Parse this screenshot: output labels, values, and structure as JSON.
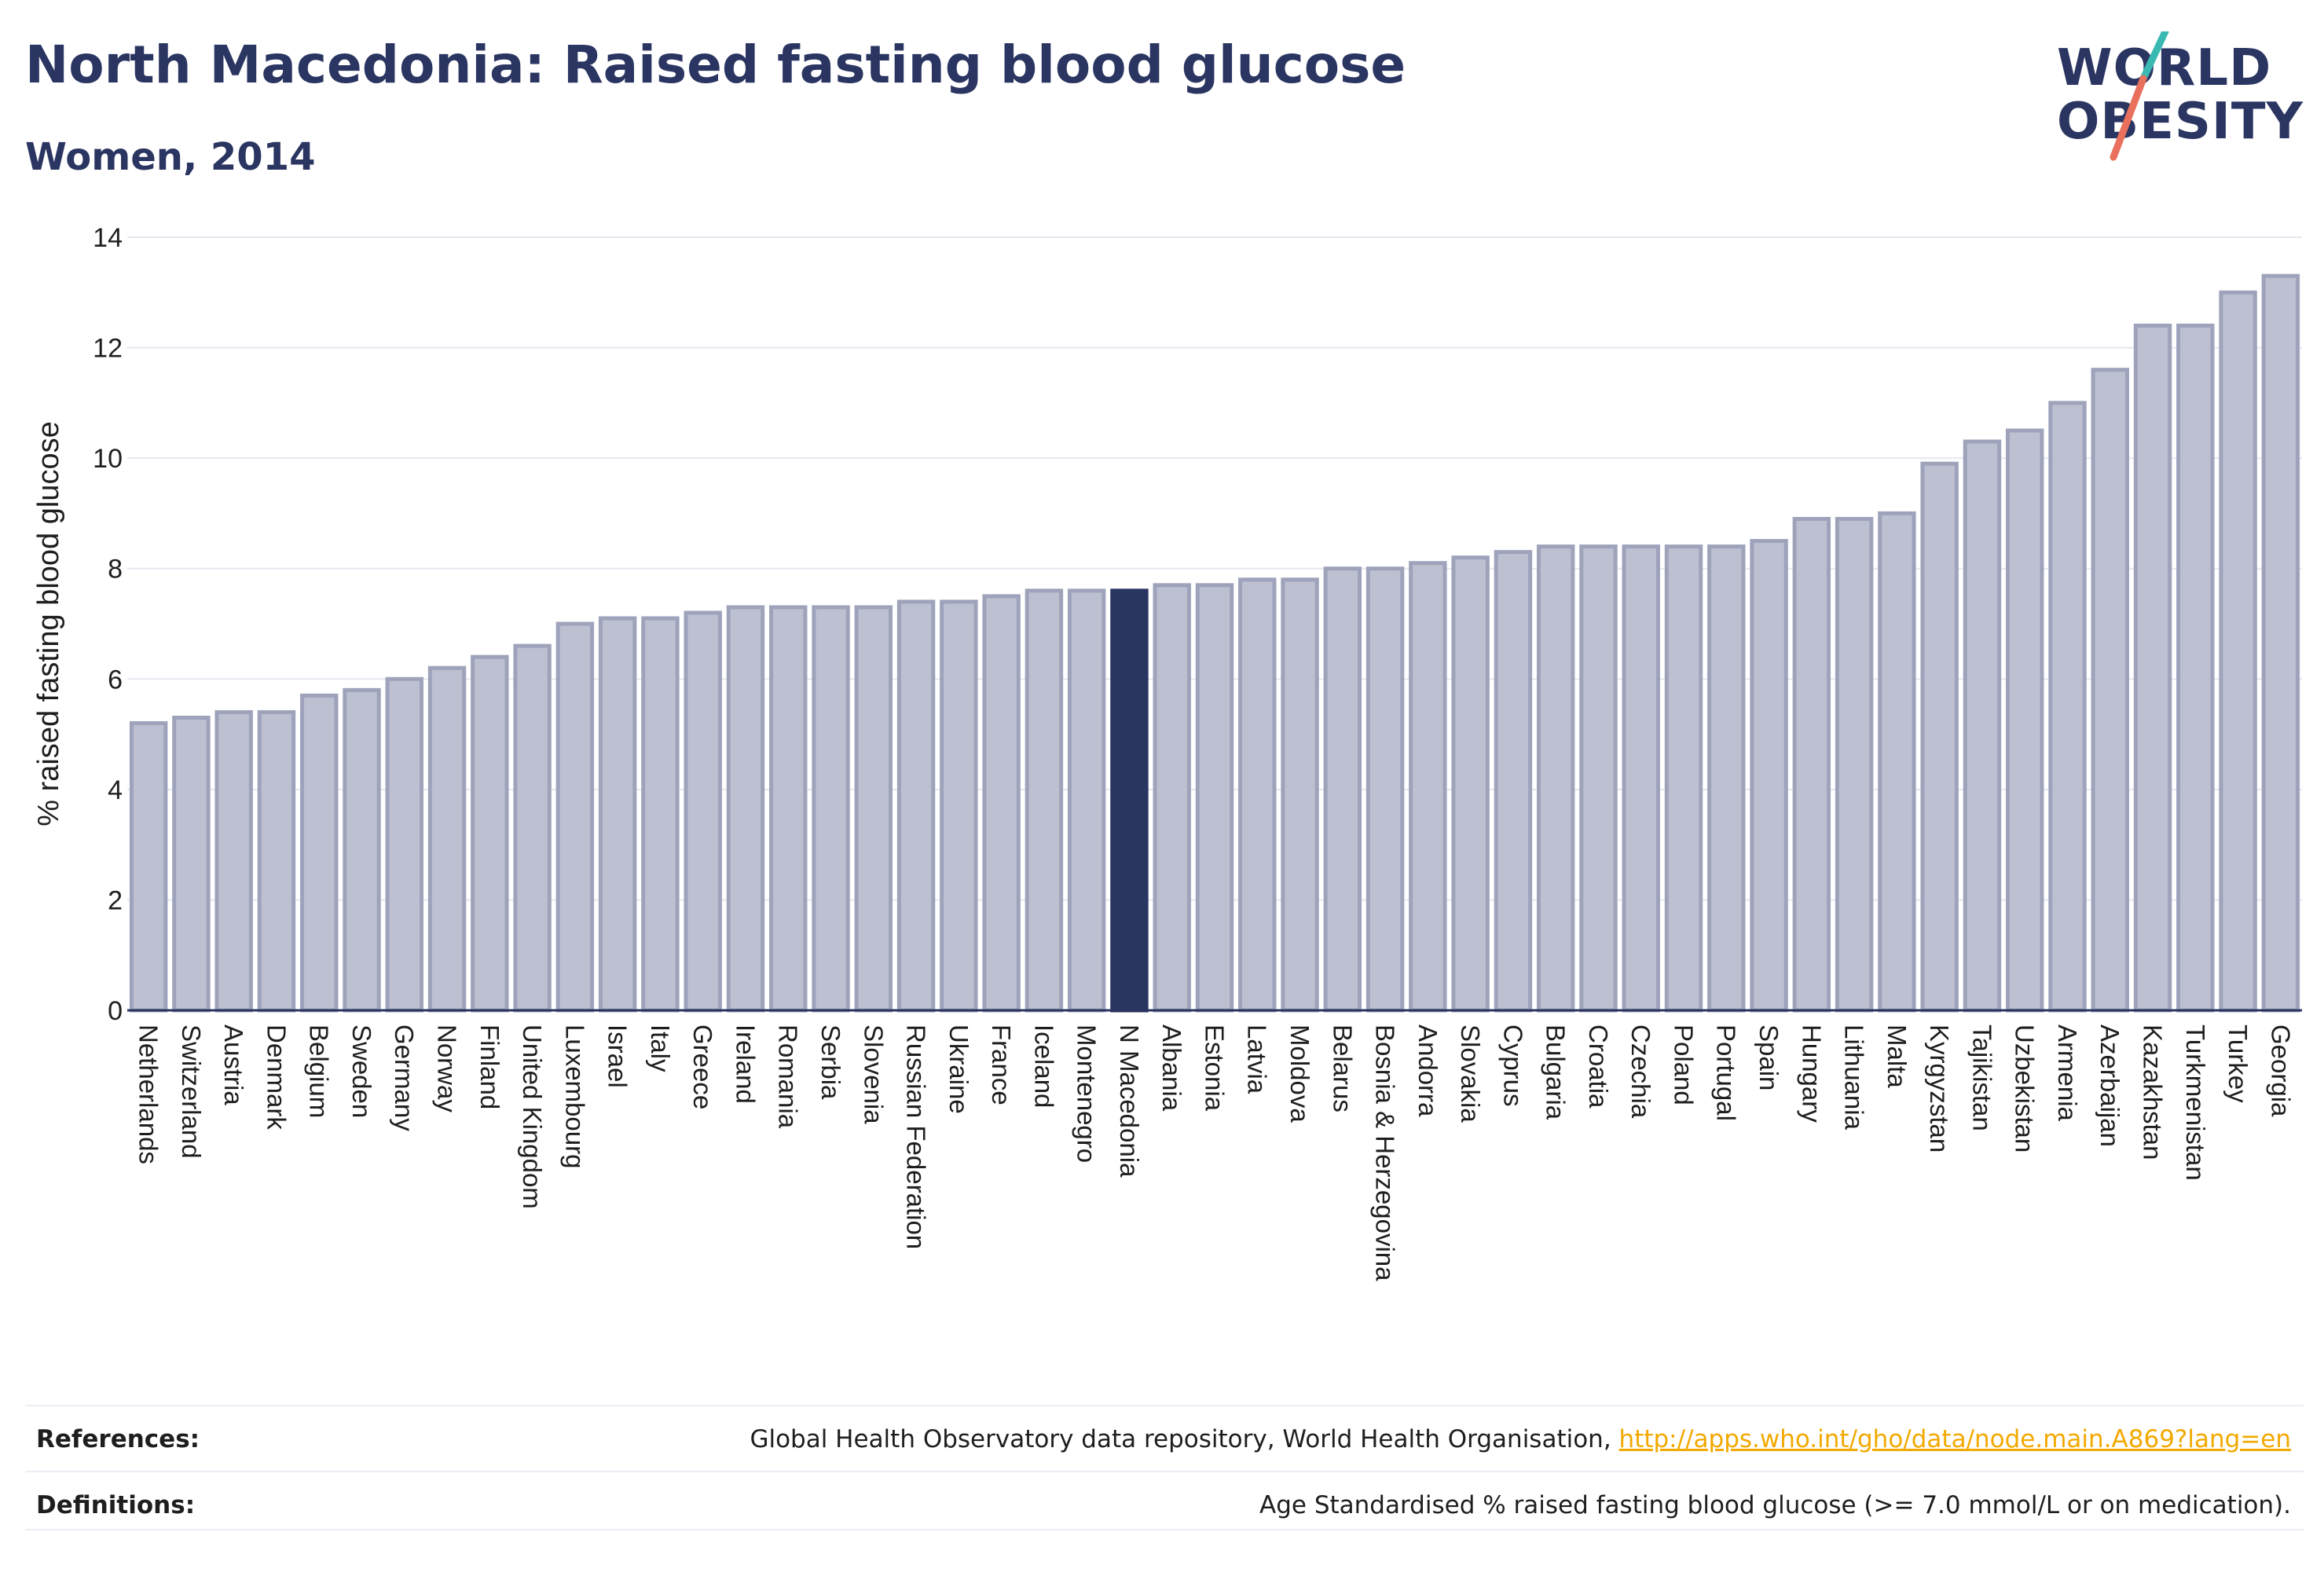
{
  "header": {
    "title": "North Macedonia: Raised fasting blood glucose",
    "subtitle": "Women, 2014"
  },
  "logo": {
    "line1": "WORLD",
    "line2": "OBESITY",
    "colors": {
      "text": "#2a3561",
      "slash_top": "#3ab9b3",
      "slash_bottom": "#e8705c"
    }
  },
  "colors": {
    "bar_default": "#bcc0d0",
    "bar_border": "#9ea3bb",
    "bar_highlight": "#2a3561",
    "grid": "#e6e8ef",
    "axis": "#2a3561"
  },
  "chart_data": {
    "type": "bar",
    "ylabel": "% raised fasting blood glucose",
    "xlabel": "",
    "ylim": [
      0,
      14
    ],
    "yticks": [
      0,
      2,
      4,
      6,
      8,
      10,
      12,
      14
    ],
    "grid": true,
    "highlight": "N Macedonia",
    "categories": [
      "Netherlands",
      "Switzerland",
      "Austria",
      "Denmark",
      "Belgium",
      "Sweden",
      "Germany",
      "Norway",
      "Finland",
      "United Kingdom",
      "Luxembourg",
      "Israel",
      "Italy",
      "Greece",
      "Ireland",
      "Romania",
      "Serbia",
      "Slovenia",
      "Russian Federation",
      "Ukraine",
      "France",
      "Iceland",
      "Montenegro",
      "N Macedonia",
      "Albania",
      "Estonia",
      "Latvia",
      "Moldova",
      "Belarus",
      "Bosnia & Herzegovina",
      "Andorra",
      "Slovakia",
      "Cyprus",
      "Bulgaria",
      "Croatia",
      "Czechia",
      "Poland",
      "Portugal",
      "Spain",
      "Hungary",
      "Lithuania",
      "Malta",
      "Kyrgyzstan",
      "Tajikistan",
      "Uzbekistan",
      "Armenia",
      "Azerbaijan",
      "Kazakhstan",
      "Turkmenistan",
      "Turkey",
      "Georgia"
    ],
    "values": [
      5.2,
      5.3,
      5.4,
      5.4,
      5.7,
      5.8,
      6.0,
      6.2,
      6.4,
      6.6,
      7.0,
      7.1,
      7.1,
      7.2,
      7.3,
      7.3,
      7.3,
      7.3,
      7.4,
      7.4,
      7.5,
      7.6,
      7.6,
      7.6,
      7.7,
      7.7,
      7.8,
      7.8,
      8.0,
      8.0,
      8.1,
      8.2,
      8.3,
      8.4,
      8.4,
      8.4,
      8.4,
      8.4,
      8.5,
      8.9,
      8.9,
      9.0,
      9.9,
      10.3,
      10.5,
      11.0,
      11.6,
      12.4,
      12.4,
      13.0,
      13.3
    ]
  },
  "footer": {
    "references_label": "References:",
    "references_text": "Global Health Observatory data repository, World Health Organisation, ",
    "references_link": "http://apps.who.int/gho/data/node.main.A869?lang=en",
    "definitions_label": "Definitions:",
    "definitions_text": "Age Standardised % raised fasting blood glucose (>= 7.0 mmol/L or on medication)."
  }
}
